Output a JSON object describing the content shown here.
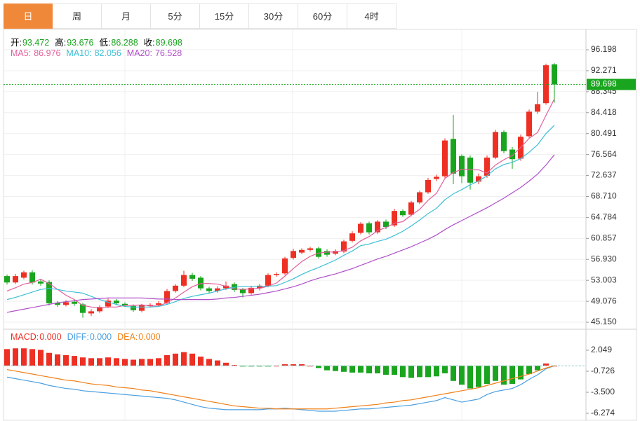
{
  "tabs": [
    "日",
    "周",
    "月",
    "5分",
    "15分",
    "30分",
    "60分",
    "4时"
  ],
  "active_tab": 0,
  "chart_data": [
    {
      "type": "candlestick",
      "legend": [
        {
          "label": "开:",
          "value": 93.472
        },
        {
          "label": "高:",
          "value": 93.676
        },
        {
          "label": "低:",
          "value": 86.288
        },
        {
          "label": "收:",
          "value": 89.698
        }
      ],
      "up_color": "#ee2f24",
      "down_color": "#1aa51f",
      "legend_value_color": "#1aa51f",
      "open": [
        53.8,
        52.6,
        53.5,
        54.5,
        52.8,
        52.7,
        48.8,
        48.4,
        49.0,
        48.5,
        46.8,
        47.2,
        48.1,
        49.2,
        48.6,
        48.2,
        47.3,
        48.2,
        48.4,
        48.8,
        51.0,
        52.0,
        54.0,
        53.5,
        51.5,
        51.0,
        51.5,
        52.3,
        51.3,
        50.6,
        51.5,
        52.0,
        54.0,
        54.3,
        57.2,
        58.2,
        58.7,
        59.0,
        58.5,
        58.0,
        58.4,
        60.4,
        61.9,
        63.7,
        62.0,
        64.0,
        63.3,
        66.0,
        65.3,
        67.6,
        69.5,
        72.0,
        72.5,
        79.5,
        76.3,
        76.0,
        71.5,
        72.6,
        76.0,
        80.8,
        77.5,
        75.8,
        80.0,
        84.6,
        86.2,
        93.472
      ],
      "high": [
        54.1,
        54.2,
        54.8,
        54.9,
        53.1,
        53.0,
        49.1,
        49.3,
        49.3,
        48.8,
        47.6,
        48.3,
        49.6,
        49.5,
        48.9,
        48.5,
        48.6,
        48.7,
        49.1,
        51.4,
        52.3,
        54.8,
        54.4,
        53.8,
        51.8,
        51.9,
        52.8,
        52.6,
        51.6,
        51.9,
        52.3,
        54.3,
        54.5,
        57.4,
        58.9,
        59.0,
        59.3,
        59.3,
        58.8,
        58.8,
        60.6,
        62.2,
        63.9,
        64.0,
        64.3,
        64.4,
        66.4,
        66.3,
        67.9,
        69.8,
        72.2,
        72.8,
        79.6,
        84.0,
        76.6,
        76.4,
        73.0,
        76.4,
        81.2,
        81.1,
        78.0,
        80.3,
        85.0,
        88.3,
        93.6,
        93.676
      ],
      "low": [
        52.2,
        52.3,
        53.2,
        52.2,
        52.0,
        48.3,
        48.0,
        48.1,
        48.2,
        46.0,
        46.3,
        46.9,
        47.8,
        48.3,
        48.0,
        47.1,
        47.0,
        47.9,
        48.1,
        48.5,
        50.7,
        51.7,
        52.9,
        51.1,
        50.6,
        50.7,
        51.2,
        50.8,
        49.8,
        50.3,
        51.1,
        51.7,
        53.7,
        54.0,
        56.9,
        57.9,
        58.4,
        57.1,
        57.4,
        57.7,
        58.1,
        60.1,
        61.6,
        61.6,
        61.7,
        62.6,
        63.0,
        64.9,
        65.0,
        67.3,
        69.2,
        71.6,
        72.2,
        71.0,
        71.2,
        70.0,
        71.0,
        72.2,
        75.7,
        76.8,
        73.9,
        75.4,
        79.7,
        84.2,
        85.9,
        86.288
      ],
      "close": [
        52.6,
        53.8,
        54.5,
        52.6,
        52.4,
        48.7,
        48.4,
        48.9,
        48.6,
        46.9,
        47.2,
        48.0,
        49.2,
        48.7,
        48.3,
        47.4,
        48.3,
        48.4,
        48.7,
        51.0,
        52.0,
        54.0,
        53.3,
        51.5,
        51.0,
        51.5,
        52.0,
        51.2,
        50.6,
        51.6,
        52.0,
        54.0,
        54.2,
        57.1,
        58.5,
        58.7,
        59.0,
        57.4,
        57.8,
        58.5,
        60.3,
        61.8,
        63.6,
        62.0,
        64.0,
        63.0,
        66.0,
        65.2,
        67.6,
        69.5,
        71.8,
        72.4,
        79.2,
        73.0,
        72.5,
        71.3,
        72.5,
        76.0,
        80.8,
        77.2,
        75.7,
        79.9,
        84.6,
        86.0,
        93.3,
        89.698
      ],
      "ma": [
        {
          "label": "MA5:",
          "value": 86.976,
          "color": "#e2609c",
          "values": [
            51.0,
            51.6,
            52.3,
            52.6,
            53.2,
            52.4,
            51.3,
            50.2,
            49.4,
            48.3,
            48.0,
            47.9,
            48.0,
            48.0,
            48.3,
            48.3,
            48.4,
            48.2,
            48.2,
            48.8,
            49.7,
            50.8,
            51.8,
            52.4,
            52.4,
            52.3,
            51.9,
            51.4,
            51.3,
            51.4,
            51.5,
            51.9,
            52.5,
            53.8,
            55.2,
            56.5,
            57.5,
            58.1,
            58.3,
            58.3,
            58.6,
            59.2,
            60.4,
            61.2,
            62.3,
            62.9,
            63.7,
            64.0,
            65.2,
            66.3,
            68.0,
            69.3,
            72.1,
            73.2,
            73.8,
            73.7,
            73.7,
            73.1,
            74.6,
            75.6,
            76.4,
            77.9,
            79.6,
            80.7,
            83.9,
            86.976
          ]
        },
        {
          "label": "MA10:",
          "value": 82.056,
          "color": "#3dbfd6",
          "values": [
            49.4,
            49.8,
            50.3,
            50.8,
            51.3,
            51.5,
            51.3,
            51.0,
            50.8,
            50.6,
            50.0,
            49.4,
            48.9,
            48.5,
            48.1,
            48.0,
            48.0,
            48.0,
            48.1,
            48.5,
            49.0,
            49.6,
            50.0,
            50.3,
            50.6,
            51.0,
            51.4,
            51.7,
            51.9,
            51.9,
            51.9,
            51.9,
            52.0,
            52.6,
            53.3,
            54.1,
            54.8,
            55.4,
            56.1,
            56.8,
            57.7,
            58.5,
            59.5,
            59.8,
            60.3,
            60.7,
            61.4,
            62.2,
            63.2,
            64.3,
            65.5,
            66.5,
            68.1,
            69.2,
            70.0,
            70.9,
            71.6,
            72.6,
            73.9,
            74.7,
            75.1,
            75.8,
            77.0,
            78.4,
            80.5,
            82.056
          ]
        },
        {
          "label": "MA20:",
          "value": 76.528,
          "color": "#b050c8",
          "values": [
            47.0,
            47.3,
            47.6,
            47.9,
            48.2,
            48.5,
            48.8,
            49.0,
            49.2,
            49.4,
            49.5,
            49.6,
            49.7,
            49.7,
            49.7,
            49.7,
            49.7,
            49.6,
            49.5,
            49.5,
            49.4,
            49.4,
            49.4,
            49.4,
            49.4,
            49.5,
            49.7,
            49.8,
            50.0,
            50.2,
            50.4,
            50.7,
            51.0,
            51.4,
            51.8,
            52.3,
            52.9,
            53.4,
            53.8,
            54.2,
            54.7,
            55.2,
            55.8,
            56.4,
            57.0,
            57.5,
            58.1,
            58.7,
            59.3,
            60.0,
            60.7,
            61.5,
            62.5,
            63.4,
            64.2,
            65.0,
            65.8,
            66.6,
            67.5,
            68.4,
            69.4,
            70.4,
            71.6,
            72.9,
            74.6,
            76.528
          ]
        }
      ],
      "ylim": [
        43.84,
        100.01
      ],
      "yticks": [
        {
          "value": 45.15,
          "label": "45.150"
        },
        49.076,
        53.003,
        {
          "value": 56.93,
          "label": "56.930"
        },
        60.857,
        64.784,
        {
          "value": 68.71,
          "label": "68.710"
        },
        72.637,
        76.564,
        80.491,
        84.418,
        88.345,
        92.271,
        96.198
      ],
      "grid": true
    },
    {
      "type": "macd",
      "legend": [
        {
          "label": "MACD:",
          "value": 0,
          "value_label": "0.000",
          "color": "#ee2f24"
        },
        {
          "label": "DIFF:",
          "value": 0,
          "value_label": "0.000",
          "color": "#4b9fe0"
        },
        {
          "label": "DEA:",
          "value": 0,
          "value_label": "0.000",
          "color": "#f08019"
        }
      ],
      "hist": [
        2.2,
        2.3,
        2.3,
        2.2,
        2.1,
        1.7,
        1.5,
        1.4,
        1.3,
        1.1,
        1.0,
        1.0,
        1.1,
        1.0,
        0.9,
        0.8,
        0.9,
        0.9,
        1.0,
        1.4,
        1.6,
        1.8,
        1.6,
        1.2,
        0.9,
        0.7,
        0.4,
        0.1,
        -0.1,
        -0.1,
        -0.1,
        -0.1,
        0.0,
        0.2,
        0.2,
        0.2,
        0.0,
        -0.3,
        -0.6,
        -0.7,
        -0.8,
        -0.9,
        -0.9,
        -1.0,
        -1.0,
        -1.2,
        -1.2,
        -1.5,
        -1.6,
        -1.5,
        -1.5,
        -1.4,
        -1.0,
        -2.0,
        -2.5,
        -3.0,
        -2.8,
        -2.4,
        -2.0,
        -2.5,
        -2.4,
        -1.8,
        -1.1,
        -0.6,
        0.3,
        0.0
      ],
      "diff": [
        -1.5,
        -1.7,
        -1.9,
        -2.1,
        -2.3,
        -2.6,
        -2.8,
        -3.0,
        -3.1,
        -3.3,
        -3.4,
        -3.5,
        -3.6,
        -3.7,
        -3.8,
        -3.9,
        -4.0,
        -4.1,
        -4.2,
        -4.3,
        -4.5,
        -4.8,
        -5.1,
        -5.4,
        -5.6,
        -5.7,
        -5.8,
        -5.8,
        -5.8,
        -5.8,
        -5.8,
        -5.7,
        -5.7,
        -5.6,
        -5.7,
        -5.8,
        -5.9,
        -6.0,
        -6.0,
        -6.0,
        -5.9,
        -5.8,
        -5.7,
        -5.7,
        -5.6,
        -5.5,
        -5.4,
        -5.3,
        -5.2,
        -5.0,
        -4.8,
        -4.6,
        -4.2,
        -4.5,
        -4.8,
        -4.6,
        -4.4,
        -3.8,
        -3.4,
        -3.2,
        -3.0,
        -2.5,
        -1.8,
        -1.2,
        -0.4,
        0.0
      ],
      "dea": [
        -0.5,
        -0.7,
        -0.9,
        -1.1,
        -1.3,
        -1.5,
        -1.7,
        -1.9,
        -2.0,
        -2.2,
        -2.4,
        -2.5,
        -2.6,
        -2.8,
        -2.9,
        -3.0,
        -3.2,
        -3.3,
        -3.5,
        -3.7,
        -3.9,
        -4.1,
        -4.3,
        -4.5,
        -4.7,
        -4.9,
        -5.1,
        -5.3,
        -5.4,
        -5.5,
        -5.6,
        -5.6,
        -5.7,
        -5.7,
        -5.7,
        -5.7,
        -5.7,
        -5.7,
        -5.7,
        -5.6,
        -5.5,
        -5.4,
        -5.3,
        -5.2,
        -5.1,
        -4.9,
        -4.8,
        -4.6,
        -4.5,
        -4.3,
        -4.1,
        -3.9,
        -3.7,
        -3.5,
        -3.3,
        -3.1,
        -2.9,
        -2.6,
        -2.3,
        -2.0,
        -1.7,
        -1.4,
        -1.1,
        -0.7,
        -0.3,
        0.0
      ],
      "up_color": "#ee2f24",
      "down_color": "#1aa51f",
      "ylim": [
        -7.2,
        4.82
      ],
      "yticks": [
        2.049,
        -0.726,
        {
          "value": -3.5,
          "label": "-3.500"
        },
        -6.274
      ]
    }
  ]
}
